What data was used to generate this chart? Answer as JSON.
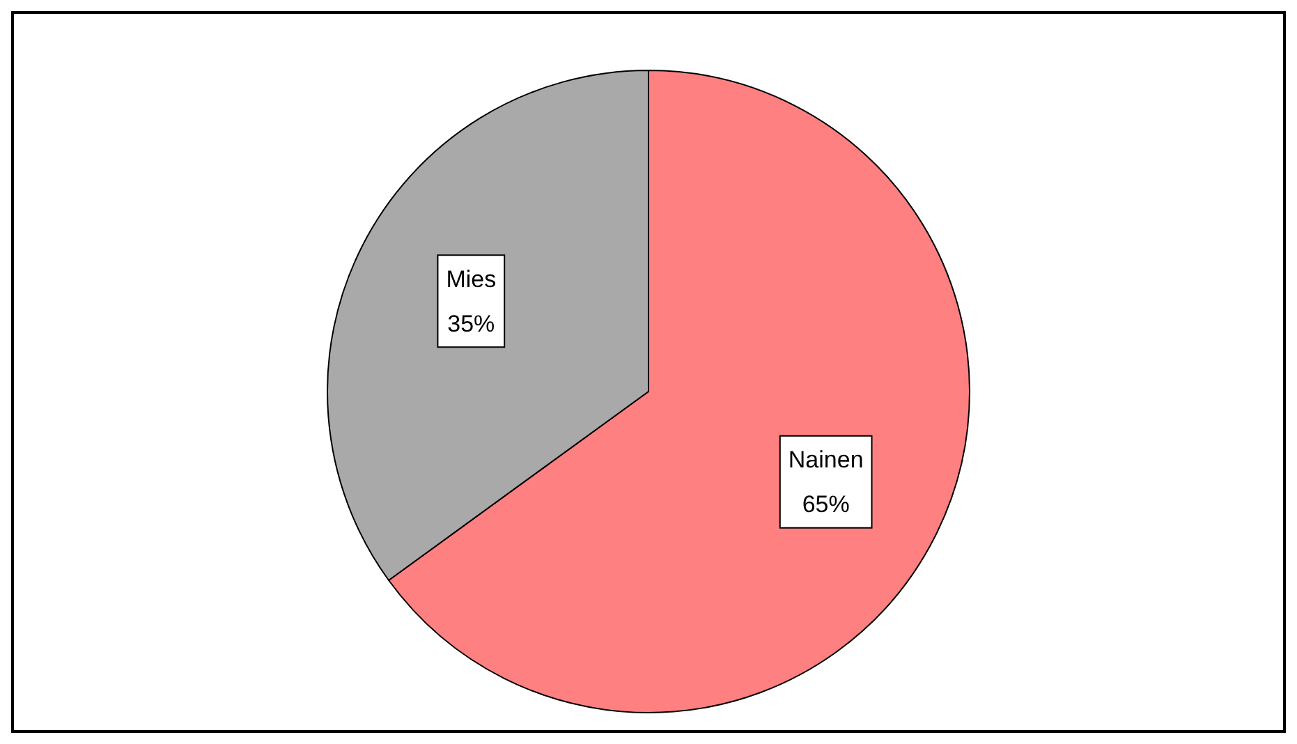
{
  "chart_data": {
    "type": "pie",
    "categories": [
      "Nainen",
      "Mies"
    ],
    "values": [
      65,
      35
    ],
    "value_labels": [
      "65%",
      "35%"
    ],
    "colors": [
      "#ff8080",
      "#a9a9a9"
    ],
    "legend": false
  }
}
